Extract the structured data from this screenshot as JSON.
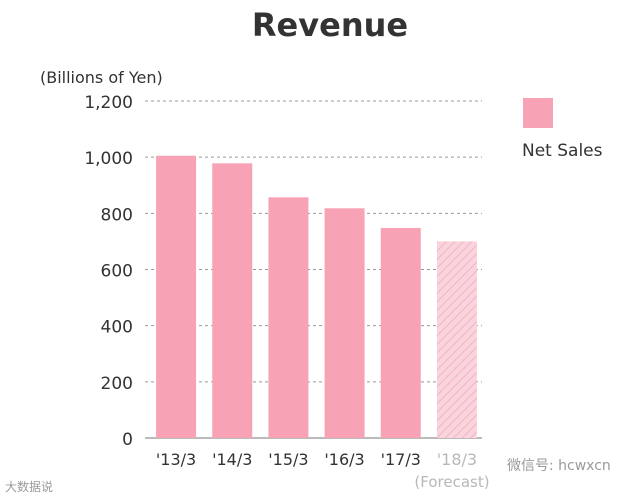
{
  "chart_data": {
    "type": "bar",
    "title": "Revenue",
    "ylabel": "(Billions of Yen)",
    "xlabel": "",
    "categories": [
      "'13/3",
      "'14/3",
      "'15/3",
      "'16/3",
      "'17/3",
      "'18/3"
    ],
    "forecast_label": "(Forecast)",
    "series": [
      {
        "name": "Net Sales",
        "values": [
          1005,
          978,
          857,
          818,
          748,
          700
        ]
      }
    ],
    "forecast_index": 5,
    "ylim": [
      0,
      1200
    ],
    "yticks": [
      "0",
      "200",
      "400",
      "600",
      "800",
      "1,000",
      "1,200"
    ],
    "grid": true,
    "legend_position": "right",
    "colors": {
      "bar": "#f7a3b5",
      "forecast_bar": "#f7c9d3",
      "grid": "#999999"
    }
  },
  "watermarks": {
    "left": "大数据说",
    "right": "微信号: hcwxcn"
  }
}
